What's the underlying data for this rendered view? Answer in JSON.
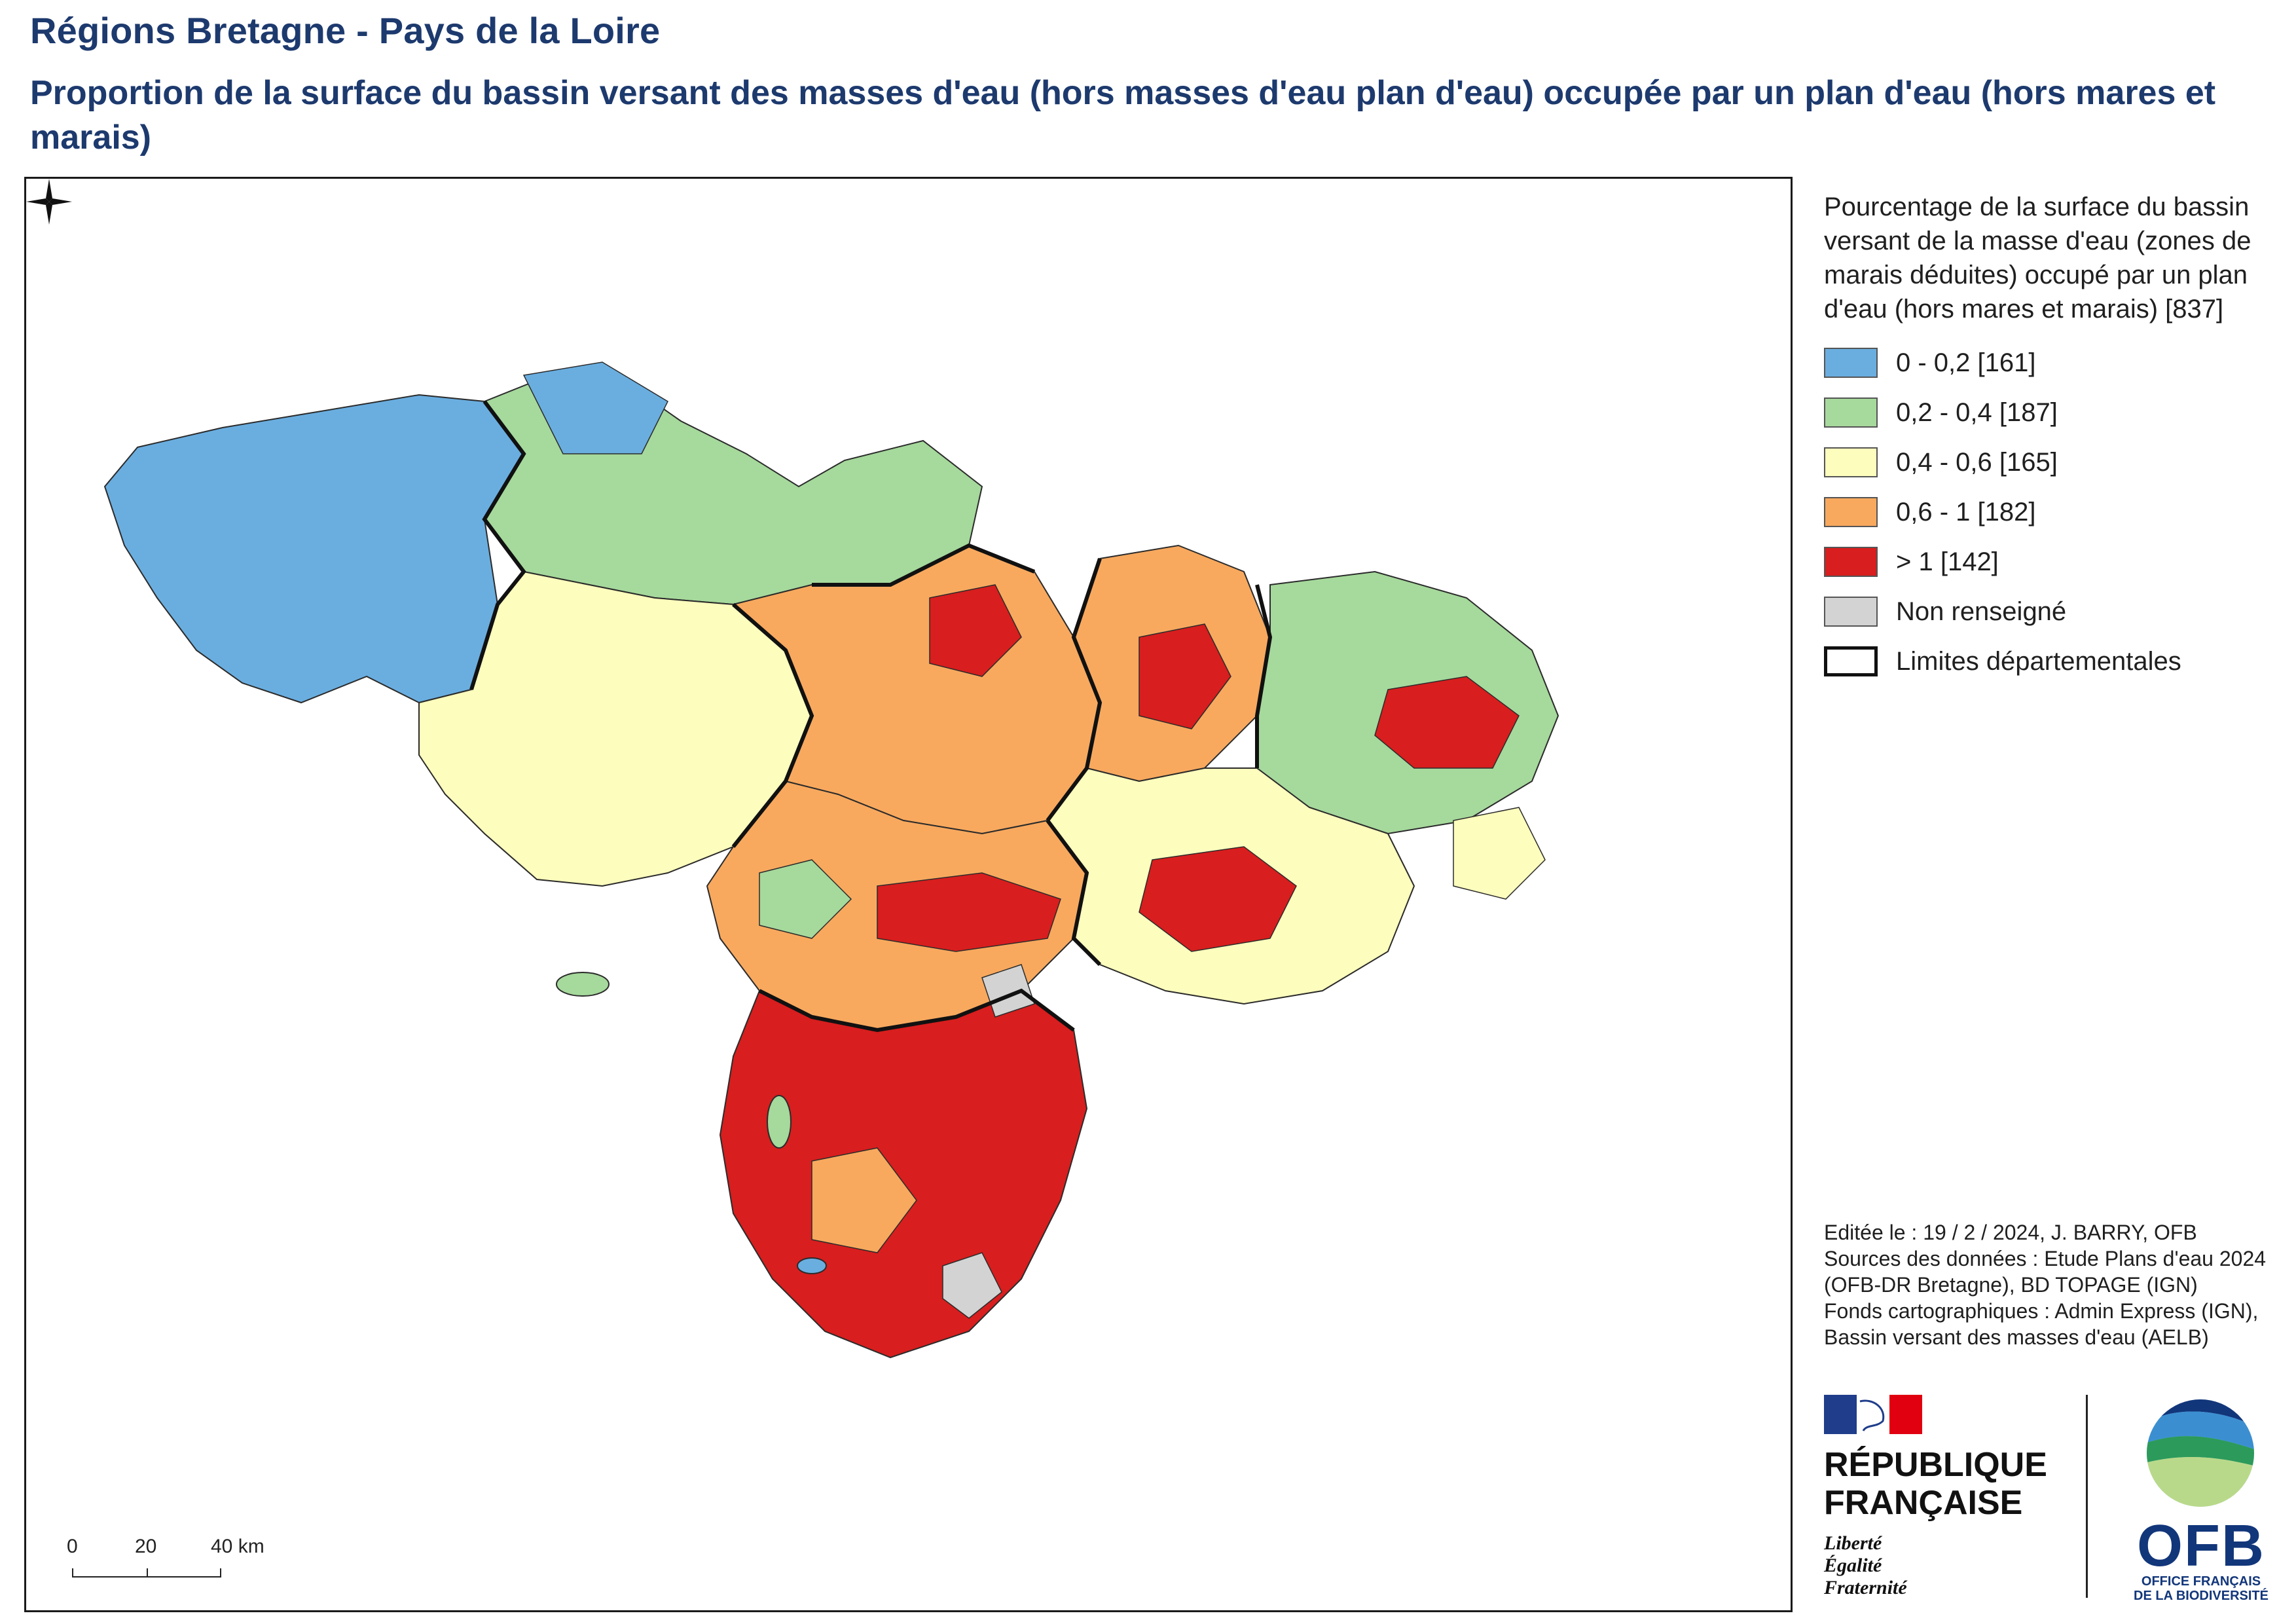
{
  "header": {
    "title": "Régions Bretagne - Pays de la Loire",
    "subtitle": "Proportion de la surface du bassin versant des masses d'eau (hors masses d'eau plan d'eau) occupée par un plan d'eau (hors mares et marais)"
  },
  "legend": {
    "title": "Pourcentage de la surface du bassin versant de la masse d'eau (zones de marais déduites) occupé par un plan d'eau (hors mares et marais) [837]",
    "items": [
      {
        "label": "0 - 0,2 [161]",
        "color": "#6aaee0"
      },
      {
        "label": "0,2 - 0,4 [187]",
        "color": "#a6d99c"
      },
      {
        "label": "0,4 - 0,6 [165]",
        "color": "#fdfdbd"
      },
      {
        "label": "0,6 - 1 [182]",
        "color": "#f8a95e"
      },
      {
        "label": "> 1 [142]",
        "color": "#d81e1e"
      },
      {
        "label": "Non renseigné",
        "color": "#d3d3d3"
      },
      {
        "label": "Limites départementales",
        "color": "#111111"
      }
    ]
  },
  "scale": {
    "labels": [
      "0",
      "20",
      "40 km"
    ]
  },
  "credits": {
    "lines": [
      "Editée le : 19 / 2 / 2024, J. BARRY, OFB",
      "Sources des données : Etude Plans d'eau 2024 (OFB-DR Bretagne), BD TOPAGE (IGN)",
      "Fonds cartographiques : Admin Express (IGN), Bassin versant des masses d'eau (AELB)"
    ]
  },
  "logos": {
    "republique": [
      "RÉPUBLIQUE",
      "FRANÇAISE"
    ],
    "motto": [
      "Liberté",
      "Égalité",
      "Fraternité"
    ],
    "ofb_name": "OFB",
    "ofb_sub": [
      "OFFICE FRANÇAIS",
      "DE LA BIODIVERSITÉ"
    ]
  },
  "map": {
    "icons": [
      "north-arrow-icon"
    ]
  }
}
